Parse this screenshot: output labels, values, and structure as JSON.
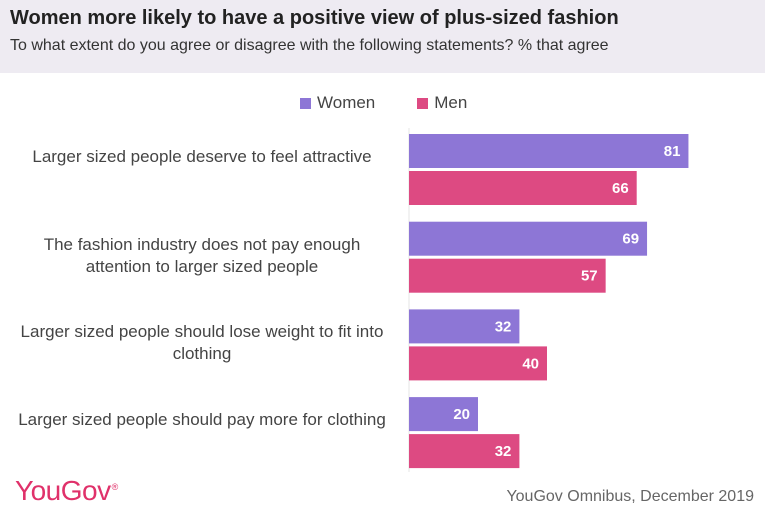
{
  "header": {
    "title": "Women more likely to have a positive view of plus-sized fashion",
    "subtitle": "To what extent do you agree or disagree with the following statements? % that agree"
  },
  "chart_data": {
    "type": "bar",
    "orientation": "horizontal",
    "categories": [
      "Larger sized people deserve to feel attractive",
      "The fashion industry does not pay enough attention to larger sized people",
      "Larger sized people should lose weight to fit into clothing",
      "Larger sized people should pay more for clothing"
    ],
    "series": [
      {
        "name": "Women",
        "color": "#8d76d6",
        "values": [
          81,
          69,
          32,
          20
        ]
      },
      {
        "name": "Men",
        "color": "#dd4a82",
        "values": [
          66,
          57,
          40,
          32
        ]
      }
    ],
    "xlim": [
      0,
      100
    ],
    "grid": false,
    "legend_position": "top"
  },
  "footer": {
    "logo_text": "YouGov",
    "logo_mark": "®",
    "source": "YouGov Omnibus, December 2019"
  }
}
